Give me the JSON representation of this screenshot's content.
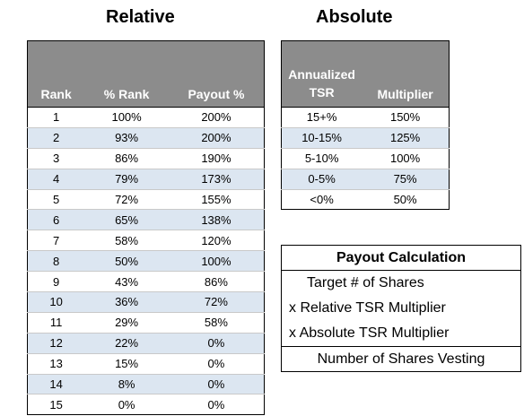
{
  "relative": {
    "title": "Relative",
    "headers": {
      "rank": "Rank",
      "pct_rank": "% Rank",
      "payout": "Payout %"
    },
    "rows": [
      {
        "rank": "1",
        "pct_rank": "100%",
        "payout": "200%"
      },
      {
        "rank": "2",
        "pct_rank": "93%",
        "payout": "200%"
      },
      {
        "rank": "3",
        "pct_rank": "86%",
        "payout": "190%"
      },
      {
        "rank": "4",
        "pct_rank": "79%",
        "payout": "173%"
      },
      {
        "rank": "5",
        "pct_rank": "72%",
        "payout": "155%"
      },
      {
        "rank": "6",
        "pct_rank": "65%",
        "payout": "138%"
      },
      {
        "rank": "7",
        "pct_rank": "58%",
        "payout": "120%"
      },
      {
        "rank": "8",
        "pct_rank": "50%",
        "payout": "100%"
      },
      {
        "rank": "9",
        "pct_rank": "43%",
        "payout": "86%"
      },
      {
        "rank": "10",
        "pct_rank": "36%",
        "payout": "72%"
      },
      {
        "rank": "11",
        "pct_rank": "29%",
        "payout": "58%"
      },
      {
        "rank": "12",
        "pct_rank": "22%",
        "payout": "0%"
      },
      {
        "rank": "13",
        "pct_rank": "15%",
        "payout": "0%"
      },
      {
        "rank": "14",
        "pct_rank": "8%",
        "payout": "0%"
      },
      {
        "rank": "15",
        "pct_rank": "0%",
        "payout": "0%"
      }
    ]
  },
  "absolute": {
    "title": "Absolute",
    "headers": {
      "tsr_line1": "Annualized",
      "tsr_line2": "TSR",
      "multiplier": "Multiplier"
    },
    "rows": [
      {
        "tsr": "15+%",
        "multiplier": "150%"
      },
      {
        "tsr": "10-15%",
        "multiplier": "125%"
      },
      {
        "tsr": "5-10%",
        "multiplier": "100%"
      },
      {
        "tsr": "0-5%",
        "multiplier": "75%"
      },
      {
        "tsr": "<0%",
        "multiplier": "50%"
      }
    ]
  },
  "payout_calculation": {
    "title": "Payout Calculation",
    "lines": [
      "Target # of Shares",
      "x Relative TSR Multiplier",
      "x Absolute TSR Multiplier"
    ],
    "result": "Number of Shares Vesting"
  },
  "colors": {
    "header_bg": "#8c8c8c",
    "header_text": "#ffffff",
    "stripe": "#dce6f1"
  }
}
